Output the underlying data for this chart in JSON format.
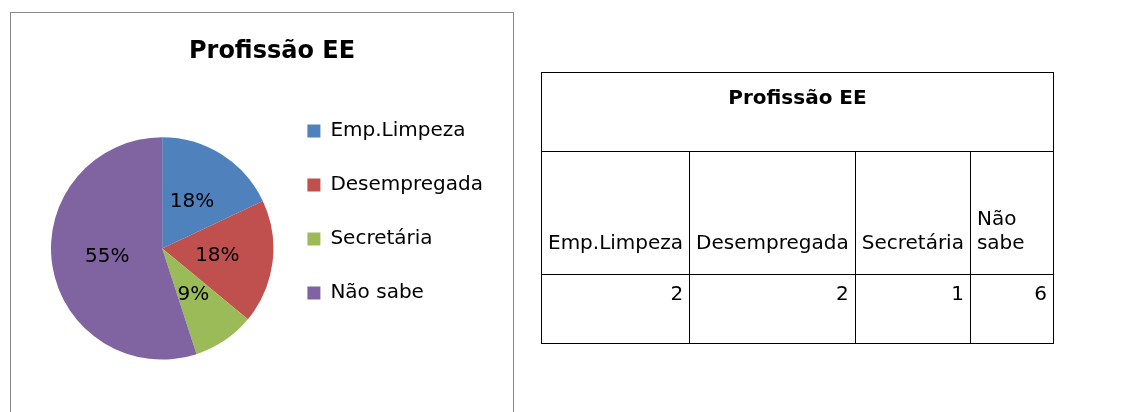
{
  "chart_data": [
    {
      "type": "pie",
      "title": "Profissão EE",
      "categories": [
        "Emp.Limpeza",
        "Desempregada",
        "Secretária",
        "Não sabe"
      ],
      "values": [
        18,
        18,
        9,
        55
      ],
      "colors": [
        "#4f81bd",
        "#c0504d",
        "#9bbb59",
        "#8064a2"
      ],
      "value_labels": [
        "18%",
        "18%",
        "9%",
        "55%"
      ],
      "legend": "right"
    },
    {
      "type": "other",
      "title": "Profissão EE",
      "categories": [
        "Emp.Limpeza",
        "Desempregada",
        "Secretária",
        "Não sabe"
      ],
      "values": [
        2,
        2,
        1,
        6
      ],
      "data_labels": true
    }
  ]
}
